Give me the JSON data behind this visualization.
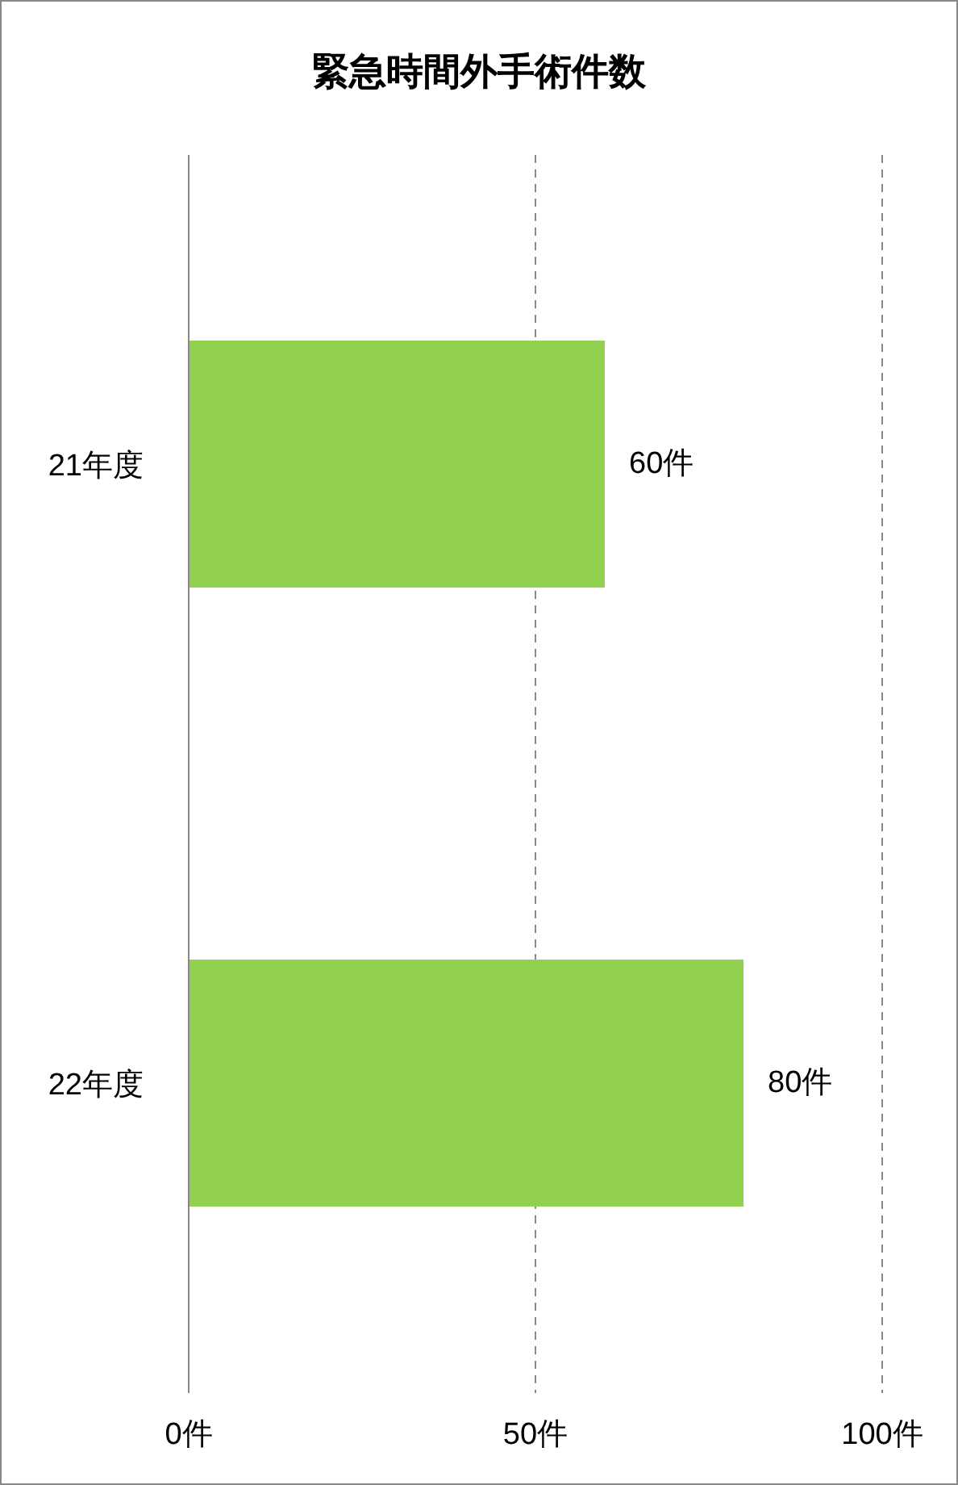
{
  "chart_data": {
    "type": "bar",
    "orientation": "horizontal",
    "title": "緊急時間外手術件数",
    "categories": [
      "21年度",
      "22年度"
    ],
    "values": [
      60,
      80
    ],
    "color": "#92d050",
    "value_labels": [
      "60件",
      "80件"
    ],
    "xlim": [
      0,
      100
    ],
    "xticks": [
      {
        "value": 0,
        "label": "0件"
      },
      {
        "value": 50,
        "label": "50件"
      },
      {
        "value": 100,
        "label": "100件"
      }
    ],
    "grid": "x"
  }
}
